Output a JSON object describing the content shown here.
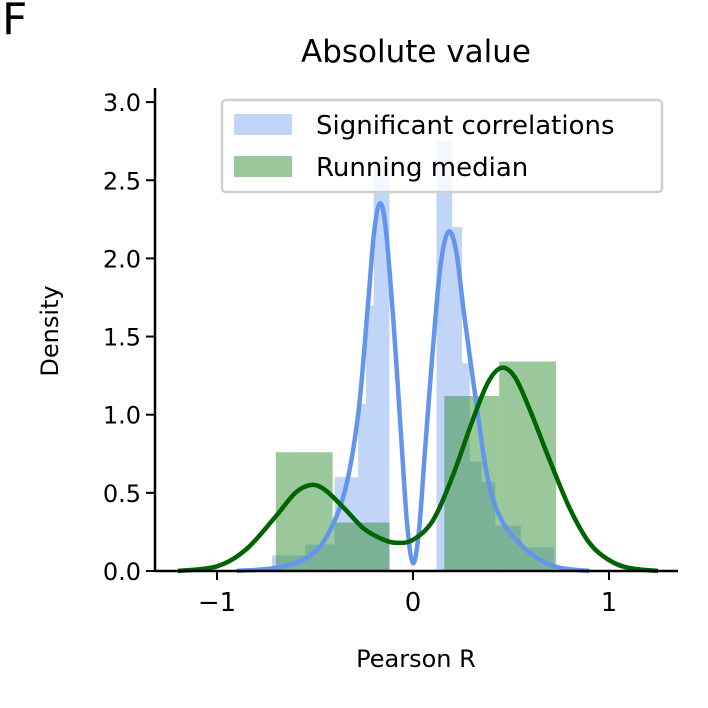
{
  "panel_label": "F",
  "chart_data": {
    "type": "bar",
    "title": "Absolute value",
    "xlabel": "Pearson R",
    "ylabel": "Density",
    "xlim": [
      -1.3,
      1.35
    ],
    "ylim": [
      0,
      3.1
    ],
    "xticks": [
      -1,
      0,
      1
    ],
    "xtick_labels": [
      "−1",
      "0",
      "1"
    ],
    "yticks": [
      0.0,
      0.5,
      1.0,
      1.5,
      2.0,
      2.5,
      3.0
    ],
    "ytick_labels": [
      "0.0",
      "0.5",
      "1.0",
      "1.5",
      "2.0",
      "2.5",
      "3.0"
    ],
    "legend_position": "top-right",
    "series": [
      {
        "name": "Significant correlations",
        "kind": "histogram",
        "color": "#6495ed",
        "opacity": 0.4,
        "bins": [
          {
            "x0": -0.9,
            "x1": -0.72,
            "value": 0.0
          },
          {
            "x0": -0.72,
            "x1": -0.55,
            "value": 0.1
          },
          {
            "x0": -0.55,
            "x1": -0.4,
            "value": 0.17
          },
          {
            "x0": -0.4,
            "x1": -0.28,
            "value": 0.6
          },
          {
            "x0": -0.28,
            "x1": -0.24,
            "value": 1.07
          },
          {
            "x0": -0.24,
            "x1": -0.2,
            "value": 1.7
          },
          {
            "x0": -0.2,
            "x1": -0.12,
            "value": 2.62
          },
          {
            "x0": 0.12,
            "x1": 0.2,
            "value": 2.75
          },
          {
            "x0": 0.2,
            "x1": 0.25,
            "value": 2.2
          },
          {
            "x0": 0.25,
            "x1": 0.29,
            "value": 1.33
          },
          {
            "x0": 0.29,
            "x1": 0.35,
            "value": 0.7
          },
          {
            "x0": 0.35,
            "x1": 0.42,
            "value": 0.57
          },
          {
            "x0": 0.42,
            "x1": 0.55,
            "value": 0.29
          },
          {
            "x0": 0.55,
            "x1": 0.72,
            "value": 0.15
          },
          {
            "x0": 0.72,
            "x1": 0.9,
            "value": 0.0
          }
        ]
      },
      {
        "name": "Running median",
        "kind": "histogram",
        "color": "#2e8b2e",
        "opacity": 0.48,
        "bins": [
          {
            "x0": -0.7,
            "x1": -0.41,
            "value": 0.76
          },
          {
            "x0": -0.41,
            "x1": -0.12,
            "value": 0.31
          },
          {
            "x0": 0.16,
            "x1": 0.44,
            "value": 1.12
          },
          {
            "x0": 0.44,
            "x1": 0.73,
            "value": 1.34
          }
        ]
      }
    ],
    "kde_lines": [
      {
        "color": "#6495ed",
        "points": [
          [
            -0.9,
            0.0
          ],
          [
            -0.7,
            0.02
          ],
          [
            -0.55,
            0.08
          ],
          [
            -0.45,
            0.2
          ],
          [
            -0.35,
            0.5
          ],
          [
            -0.28,
            1.0
          ],
          [
            -0.23,
            1.7
          ],
          [
            -0.2,
            2.15
          ],
          [
            -0.17,
            2.35
          ],
          [
            -0.14,
            2.2
          ],
          [
            -0.1,
            1.6
          ],
          [
            -0.06,
            0.85
          ],
          [
            -0.03,
            0.3
          ],
          [
            0.0,
            0.05
          ],
          [
            0.03,
            0.25
          ],
          [
            0.06,
            0.75
          ],
          [
            0.1,
            1.4
          ],
          [
            0.14,
            1.95
          ],
          [
            0.18,
            2.17
          ],
          [
            0.22,
            2.05
          ],
          [
            0.26,
            1.65
          ],
          [
            0.32,
            1.1
          ],
          [
            0.38,
            0.6
          ],
          [
            0.45,
            0.33
          ],
          [
            0.55,
            0.17
          ],
          [
            0.65,
            0.07
          ],
          [
            0.75,
            0.02
          ],
          [
            0.9,
            0.0
          ]
        ]
      },
      {
        "color": "#006400",
        "points": [
          [
            -1.2,
            0.0
          ],
          [
            -1.0,
            0.03
          ],
          [
            -0.85,
            0.14
          ],
          [
            -0.7,
            0.35
          ],
          [
            -0.6,
            0.5
          ],
          [
            -0.52,
            0.55
          ],
          [
            -0.45,
            0.52
          ],
          [
            -0.35,
            0.4
          ],
          [
            -0.25,
            0.27
          ],
          [
            -0.15,
            0.2
          ],
          [
            -0.08,
            0.18
          ],
          [
            0.0,
            0.2
          ],
          [
            0.1,
            0.32
          ],
          [
            0.2,
            0.6
          ],
          [
            0.3,
            0.95
          ],
          [
            0.38,
            1.2
          ],
          [
            0.45,
            1.3
          ],
          [
            0.52,
            1.24
          ],
          [
            0.6,
            1.02
          ],
          [
            0.7,
            0.7
          ],
          [
            0.8,
            0.4
          ],
          [
            0.9,
            0.18
          ],
          [
            1.0,
            0.07
          ],
          [
            1.1,
            0.02
          ],
          [
            1.25,
            0.0
          ]
        ]
      }
    ]
  }
}
